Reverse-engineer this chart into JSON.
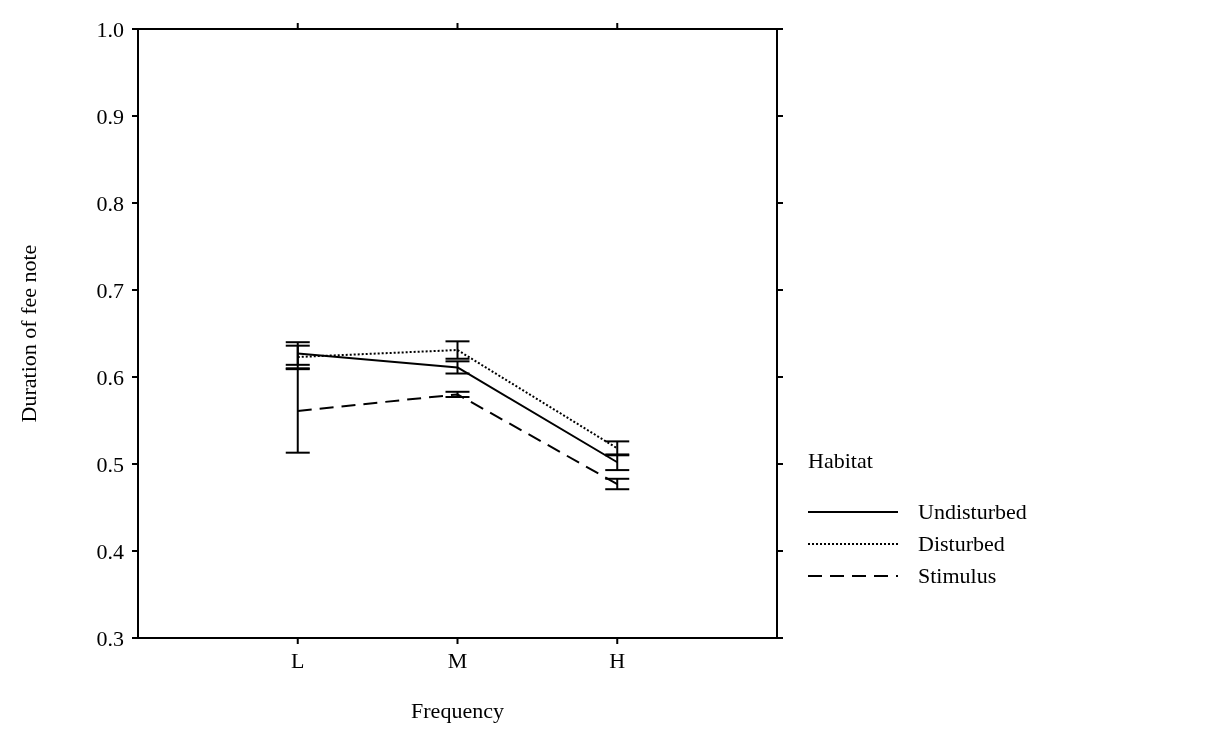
{
  "chart_data": {
    "type": "line",
    "xlabel": "Frequency",
    "ylabel": "Duration of fee note",
    "legend_title": "Habitat",
    "categories": [
      "L",
      "M",
      "H"
    ],
    "series": [
      {
        "name": "Undisturbed",
        "color": "#000000",
        "line_style": "solid",
        "values": [
          0.627,
          0.611,
          0.502
        ],
        "errors": [
          0.013,
          0.007,
          0.009
        ]
      },
      {
        "name": "Disturbed",
        "color": "#000000",
        "line_style": "dotted",
        "values": [
          0.623,
          0.631,
          0.518
        ],
        "errors": [
          0.013,
          0.01,
          0.008
        ]
      },
      {
        "name": "Stimulus",
        "color": "#000000",
        "line_style": "dashed",
        "values": [
          0.561,
          0.58,
          0.477
        ],
        "errors": [
          0.048,
          0.003,
          0.006
        ]
      }
    ],
    "ylim": [
      0.3,
      1.0
    ],
    "yticks": [
      {
        "value": 0.3,
        "label": "0.3"
      },
      {
        "value": 0.4,
        "label": "0.4"
      },
      {
        "value": 0.5,
        "label": "0.5"
      },
      {
        "value": 0.6,
        "label": "0.6"
      },
      {
        "value": 0.7,
        "label": "0.7"
      },
      {
        "value": 0.8,
        "label": "0.8"
      },
      {
        "value": 0.9,
        "label": "0.9"
      },
      {
        "value": 1.0,
        "label": "1.0"
      }
    ],
    "grid": false,
    "legend": "right",
    "marker": "none"
  }
}
